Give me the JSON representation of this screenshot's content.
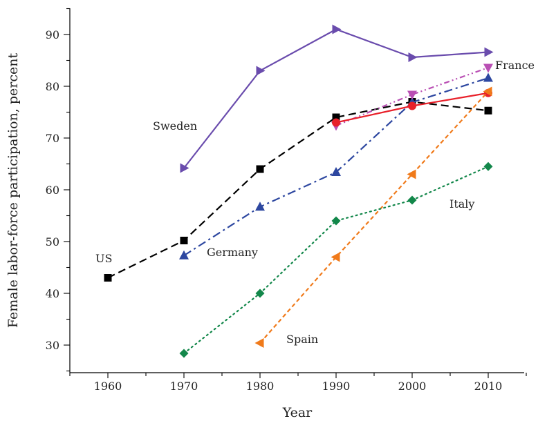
{
  "chart_data": {
    "type": "line",
    "title": "",
    "xlabel": "Year",
    "ylabel": "Female labor-force participation, percent",
    "xlim": [
      1955,
      2015
    ],
    "ylim": [
      25,
      97
    ],
    "x_ticks": [
      1960,
      1970,
      1980,
      1990,
      2000,
      2010
    ],
    "y_ticks": [
      30,
      40,
      50,
      60,
      70,
      80,
      90
    ],
    "grid": false,
    "legend": "none (series labeled directly on chart)",
    "series": [
      {
        "name": "Sweden",
        "color": "#6a4cad",
        "dash": "solid",
        "marker": "triangle-right",
        "x": [
          1970,
          1980,
          1990,
          2000,
          2010
        ],
        "y": [
          64.2,
          83.0,
          91.0,
          85.6,
          86.6
        ]
      },
      {
        "name": "US",
        "color": "#000000",
        "dash": "long-dash",
        "marker": "square",
        "x": [
          1960,
          1970,
          1980,
          1990,
          2000,
          2010
        ],
        "y": [
          43.0,
          50.2,
          64.0,
          74.0,
          77.0,
          75.3
        ]
      },
      {
        "name": "Germany",
        "color": "#2d47a0",
        "dash": "dash-dot",
        "marker": "triangle-up",
        "x": [
          1970,
          1980,
          1990,
          2000,
          2010
        ],
        "y": [
          47.3,
          56.7,
          63.4,
          76.9,
          81.6
        ]
      },
      {
        "name": "France",
        "color": "#b94fb4",
        "dash": "dash-dot-dot",
        "marker": "triangle-down",
        "x": [
          1990,
          2000,
          2010
        ],
        "y": [
          72.4,
          78.4,
          83.6
        ]
      },
      {
        "name": "",
        "color": "#e8202a",
        "dash": "solid",
        "marker": "circle",
        "x": [
          1990,
          2000,
          2010
        ],
        "y": [
          73.0,
          76.2,
          78.7
        ]
      },
      {
        "name": "Spain",
        "color": "#f07a1a",
        "dash": "dash",
        "marker": "triangle-left",
        "x": [
          1980,
          1990,
          2000,
          2010
        ],
        "y": [
          30.4,
          47.0,
          63.0,
          79.0
        ]
      },
      {
        "name": "Italy",
        "color": "#12874a",
        "dash": "dotted",
        "marker": "diamond",
        "x": [
          1970,
          1980,
          1990,
          2000,
          2010
        ],
        "y": [
          28.4,
          40.0,
          54.0,
          58.0,
          64.5
        ]
      }
    ]
  }
}
